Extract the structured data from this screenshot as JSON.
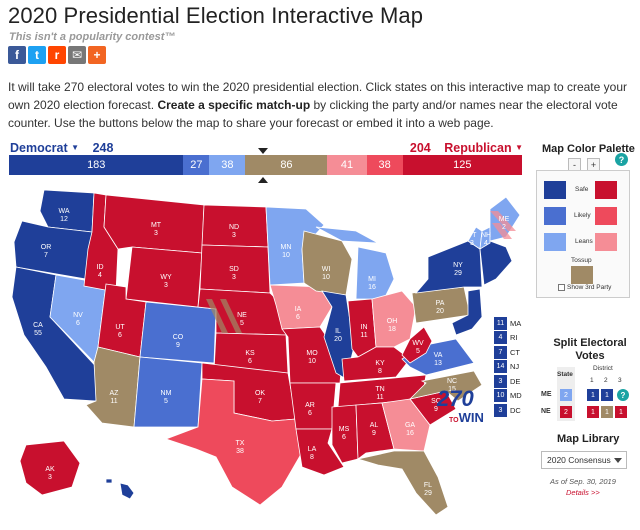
{
  "header": {
    "title": "2020 Presidential Election Interactive Map",
    "tagline": "This isn't a popularity contest™"
  },
  "share": [
    {
      "name": "facebook-icon",
      "glyph": "f",
      "color": "#3b5998"
    },
    {
      "name": "twitter-icon",
      "glyph": "t",
      "color": "#1da1f2"
    },
    {
      "name": "reddit-icon",
      "glyph": "r",
      "color": "#ff4500"
    },
    {
      "name": "email-icon",
      "glyph": "✉",
      "color": "#777777"
    },
    {
      "name": "more-share-icon",
      "glyph": "+",
      "color": "#f26522"
    }
  ],
  "intro": {
    "part1": "It will take 270 electoral votes to win the 2020 presidential election. Click states on this interactive map to create your own 2020 election forecast. ",
    "bold": "Create a specific match-up",
    "part2": " by clicking the party and/or names near the electoral vote counter. Use the buttons below the map to share your forecast or embed it into a web page."
  },
  "counter": {
    "dem_label": "Democrat",
    "dem_total": "248",
    "rep_label": "Republican",
    "rep_total": "204",
    "segments": [
      {
        "value": 183,
        "label": "183",
        "color": "#1f3f99"
      },
      {
        "value": 27,
        "label": "27",
        "color": "#4a6fd0"
      },
      {
        "value": 38,
        "label": "38",
        "color": "#7fa6f0"
      },
      {
        "value": 86,
        "label": "86",
        "color": "#a08a66"
      },
      {
        "value": 41,
        "label": "41",
        "color": "#f58d96"
      },
      {
        "value": 38,
        "label": "38",
        "color": "#ee4a5c"
      },
      {
        "value": 125,
        "label": "125",
        "color": "#c8102e"
      }
    ]
  },
  "colors": {
    "safe_dem": "#1f3f99",
    "likely_dem": "#4a6fd0",
    "lean_dem": "#7fa6f0",
    "tossup": "#a08a66",
    "lean_rep": "#f58d96",
    "likely_rep": "#ee4a5c",
    "safe_rep": "#c8102e"
  },
  "states": [
    {
      "abbr": "WA",
      "ev": "12"
    },
    {
      "abbr": "OR",
      "ev": "7"
    },
    {
      "abbr": "CA",
      "ev": "55"
    },
    {
      "abbr": "NV",
      "ev": "6"
    },
    {
      "abbr": "ID",
      "ev": "4"
    },
    {
      "abbr": "MT",
      "ev": "3"
    },
    {
      "abbr": "WY",
      "ev": "3"
    },
    {
      "abbr": "UT",
      "ev": "6"
    },
    {
      "abbr": "AZ",
      "ev": "11"
    },
    {
      "abbr": "CO",
      "ev": "9"
    },
    {
      "abbr": "NM",
      "ev": "5"
    },
    {
      "abbr": "ND",
      "ev": "3"
    },
    {
      "abbr": "SD",
      "ev": "3"
    },
    {
      "abbr": "NE",
      "ev": "5"
    },
    {
      "abbr": "KS",
      "ev": "6"
    },
    {
      "abbr": "OK",
      "ev": "7"
    },
    {
      "abbr": "TX",
      "ev": "38"
    },
    {
      "abbr": "MN",
      "ev": "10"
    },
    {
      "abbr": "IA",
      "ev": "6"
    },
    {
      "abbr": "MO",
      "ev": "10"
    },
    {
      "abbr": "AR",
      "ev": "6"
    },
    {
      "abbr": "LA",
      "ev": "8"
    },
    {
      "abbr": "WI",
      "ev": "10"
    },
    {
      "abbr": "IL",
      "ev": "20"
    },
    {
      "abbr": "MI",
      "ev": "16"
    },
    {
      "abbr": "IN",
      "ev": "11"
    },
    {
      "abbr": "OH",
      "ev": "18"
    },
    {
      "abbr": "KY",
      "ev": "8"
    },
    {
      "abbr": "TN",
      "ev": "11"
    },
    {
      "abbr": "MS",
      "ev": "6"
    },
    {
      "abbr": "AL",
      "ev": "9"
    },
    {
      "abbr": "GA",
      "ev": "16"
    },
    {
      "abbr": "FL",
      "ev": "29"
    },
    {
      "abbr": "SC",
      "ev": "9"
    },
    {
      "abbr": "NC",
      "ev": "15"
    },
    {
      "abbr": "VA",
      "ev": "13"
    },
    {
      "abbr": "WV",
      "ev": "5"
    },
    {
      "abbr": "PA",
      "ev": "20"
    },
    {
      "abbr": "NY",
      "ev": "29"
    },
    {
      "abbr": "VT",
      "ev": "3"
    },
    {
      "abbr": "NH",
      "ev": "4"
    },
    {
      "abbr": "ME",
      "ev": "2"
    },
    {
      "abbr": "AK",
      "ev": "3"
    },
    {
      "abbr": "HI",
      "ev": "4"
    }
  ],
  "small_states": [
    {
      "ev": "11",
      "abbr": "MA"
    },
    {
      "ev": "4",
      "abbr": "RI"
    },
    {
      "ev": "7",
      "abbr": "CT"
    },
    {
      "ev": "14",
      "abbr": "NJ"
    },
    {
      "ev": "3",
      "abbr": "DE"
    },
    {
      "ev": "10",
      "abbr": "MD"
    },
    {
      "ev": "3",
      "abbr": "DC"
    }
  ],
  "logo": {
    "number": "270",
    "small": "TO",
    "word": "WIN"
  },
  "palette": {
    "title": "Map Color Palette",
    "minus": "-",
    "plus": "+",
    "help": "?",
    "safe": "Safe",
    "likely": "Likely",
    "leans": "Leans",
    "tossup": "Tossup",
    "show_third": "Show 3rd Party"
  },
  "split": {
    "title": "Split Electoral Votes",
    "state_hdr": "State",
    "district_hdr": "District",
    "cols": [
      "1",
      "2",
      "3"
    ],
    "rows": [
      {
        "label": "ME",
        "state": "2",
        "d": [
          "1",
          "1",
          "?"
        ]
      },
      {
        "label": "NE",
        "state": "2",
        "d": [
          "1",
          "1",
          "1"
        ]
      }
    ]
  },
  "library": {
    "title": "Map Library",
    "selected": "2020 Consensus",
    "as_of": "As of Sep. 30, 2019",
    "details": "Details >>"
  }
}
